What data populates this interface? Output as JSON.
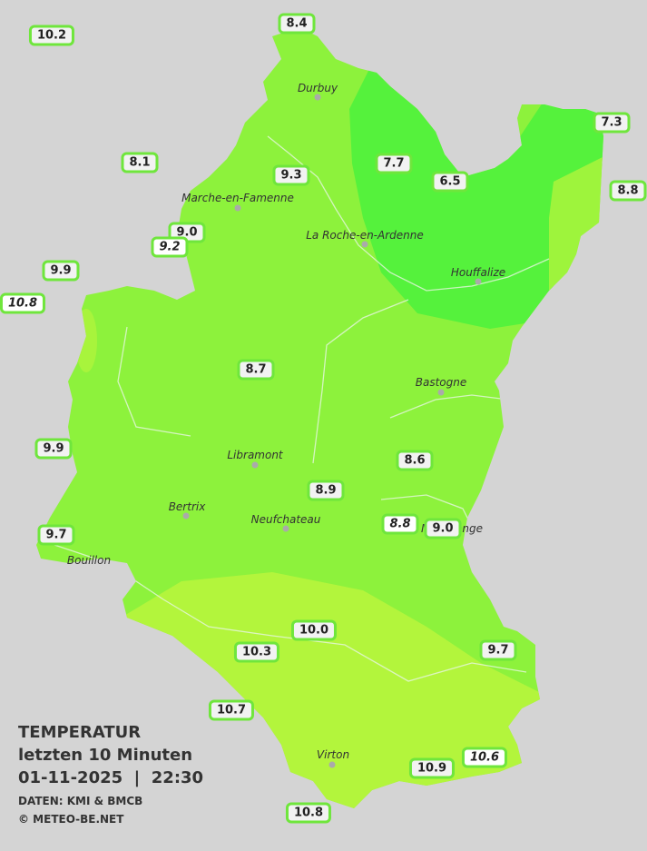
{
  "title": {
    "heading": "TEMPERATUR",
    "period": "letzten 10 Minuten",
    "datetime": "01-11-2025  |  22:30",
    "source": "DATEN: KMI & BMCB",
    "credit": "© METEO-BE.NET"
  },
  "cities": [
    "Durbuy",
    "Marche-en-Famenne",
    "La Roche-en-Ardenne",
    "Houffalize",
    "Bastogne",
    "Libramont",
    "Bertrix",
    "Neufchateau",
    "Bouillon",
    "Martelange",
    "Virton"
  ],
  "stations": [
    "10.2",
    "8.4",
    "7.3",
    "8.1",
    "9.3",
    "7.7",
    "6.5",
    "8.8",
    "9.0",
    "9.2",
    "9.9",
    "10.8",
    "8.7",
    "9.9",
    "8.6",
    "8.9",
    "8.8",
    "9.0",
    "9.7",
    "10.0",
    "10.3",
    "9.7",
    "10.7",
    "10.9",
    "10.6",
    "10.8"
  ]
}
